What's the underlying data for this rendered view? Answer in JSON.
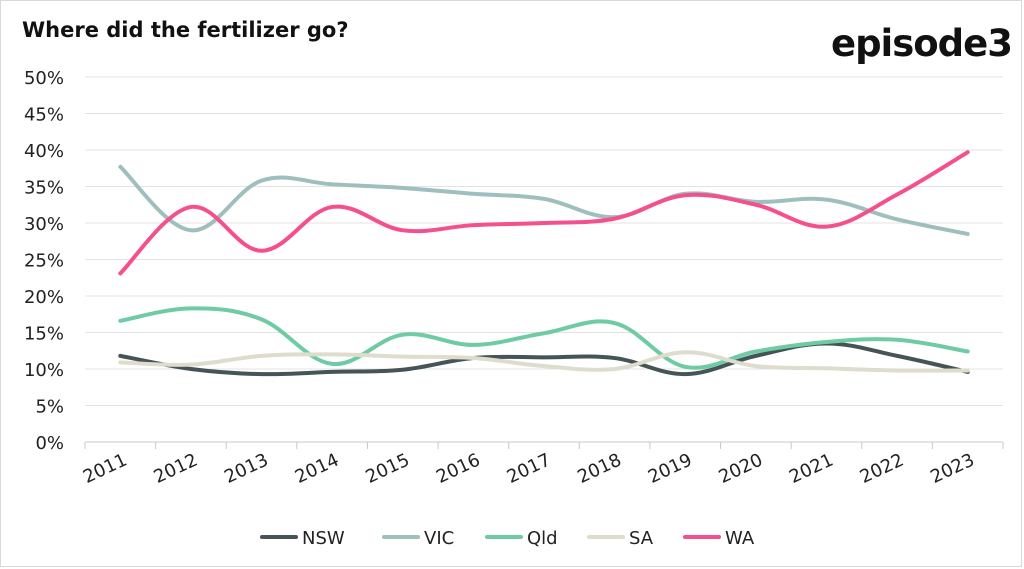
{
  "chart_data": {
    "type": "line",
    "title": "Where did the fertilizer go?",
    "brand": "episode3",
    "xlabel": "",
    "ylabel": "",
    "ylim": [
      0,
      0.5
    ],
    "y_ticks": [
      "0%",
      "5%",
      "10%",
      "15%",
      "20%",
      "25%",
      "30%",
      "35%",
      "40%",
      "45%",
      "50%"
    ],
    "categories": [
      "2011",
      "2012",
      "2013",
      "2014",
      "2015",
      "2016",
      "2017",
      "2018",
      "2019",
      "2020",
      "2021",
      "2022",
      "2023"
    ],
    "grid": true,
    "legend_position": "bottom",
    "series": [
      {
        "name": "NSW",
        "color": "#455456",
        "values": [
          0.118,
          0.1,
          0.093,
          0.096,
          0.099,
          0.115,
          0.116,
          0.115,
          0.093,
          0.118,
          0.135,
          0.118,
          0.096
        ]
      },
      {
        "name": "VIC",
        "color": "#9fbfbf",
        "values": [
          0.377,
          0.29,
          0.358,
          0.353,
          0.348,
          0.34,
          0.333,
          0.308,
          0.34,
          0.329,
          0.332,
          0.305,
          0.285
        ]
      },
      {
        "name": "Qld",
        "color": "#6ecba3",
        "values": [
          0.166,
          0.183,
          0.168,
          0.107,
          0.147,
          0.133,
          0.149,
          0.163,
          0.103,
          0.124,
          0.137,
          0.14,
          0.124
        ]
      },
      {
        "name": "SA",
        "color": "#deddcb",
        "values": [
          0.109,
          0.106,
          0.118,
          0.12,
          0.117,
          0.115,
          0.104,
          0.1,
          0.123,
          0.104,
          0.101,
          0.098,
          0.098
        ]
      },
      {
        "name": "WA",
        "color": "#f4508d",
        "values": [
          0.231,
          0.322,
          0.262,
          0.322,
          0.29,
          0.297,
          0.3,
          0.306,
          0.338,
          0.325,
          0.295,
          0.339,
          0.397
        ]
      }
    ]
  }
}
